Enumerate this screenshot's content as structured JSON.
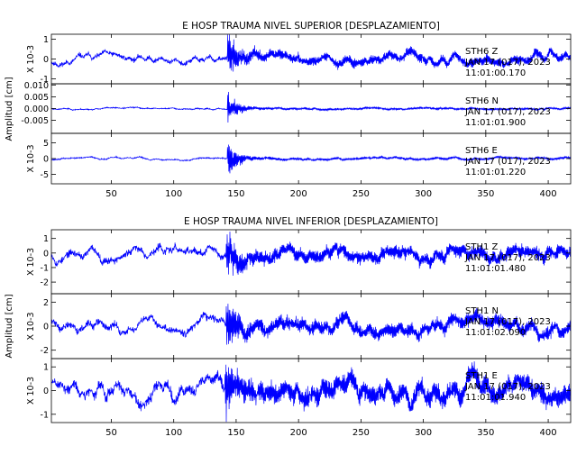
{
  "chart_data": [
    {
      "type": "line",
      "title": "E HOSP TRAUMA NIVEL SUPERIOR [DESPLAZAMIENTO]",
      "ylabel": "Amplitud [cm]",
      "xlim": [
        2,
        418
      ],
      "xticks": [
        50,
        100,
        150,
        200,
        250,
        300,
        350,
        400
      ],
      "line_color": "#0000ff",
      "panels": [
        {
          "station": "STH6",
          "component": "Z",
          "date": "JAN 17 (017), 2023",
          "time": "11:01:00.170",
          "multiplier": "X 10-3",
          "ylim": [
            -1.25,
            1.25
          ],
          "yticks": [
            -1,
            0,
            1
          ],
          "ytick_labels": [
            "-1",
            "0",
            "1"
          ],
          "event_time": 143,
          "event_peak": 1.15,
          "noise": 0.22,
          "seed": 11
        },
        {
          "station": "STH6",
          "component": "N",
          "date": "JAN 17 (017), 2023",
          "time": "11:01:01.900",
          "multiplier": "",
          "ylim": [
            -0.0105,
            0.0105
          ],
          "yticks": [
            -0.005,
            0,
            0.005,
            0.01
          ],
          "ytick_labels": [
            "-0.005",
            "0.000",
            "0.005",
            "0.010"
          ],
          "event_time": 143,
          "event_peak": 0.0062,
          "noise": 0.0004,
          "seed": 23
        },
        {
          "station": "STH6",
          "component": "E",
          "date": "JAN 17 (017), 2023",
          "time": "11:01:01.220",
          "multiplier": "X 10-3",
          "ylim": [
            -8,
            8
          ],
          "yticks": [
            -5,
            0,
            5
          ],
          "ytick_labels": [
            "-5",
            "0",
            "5"
          ],
          "event_time": 143,
          "event_peak": 6.5,
          "noise": 0.35,
          "seed": 37
        }
      ]
    },
    {
      "type": "line",
      "title": "E HOSP TRAUMA NIVEL INFERIOR [DESPLAZAMIENTO]",
      "ylabel": "Amplitud [cm]",
      "xlim": [
        2,
        418
      ],
      "xticks": [
        50,
        100,
        150,
        200,
        250,
        300,
        350,
        400
      ],
      "line_color": "#0000ff",
      "panels": [
        {
          "station": "STH1",
          "component": "Z",
          "date": "JAN 17 (017), 2023",
          "time": "11:01:01.480",
          "multiplier": "X 10-3",
          "ylim": [
            -2.8,
            1.6
          ],
          "yticks": [
            -2,
            -1,
            0,
            1
          ],
          "ytick_labels": [
            "-2",
            "-1",
            "0",
            "1"
          ],
          "event_time": 142,
          "event_peak": 1.5,
          "noise": 0.45,
          "seed": 53
        },
        {
          "station": "STH1",
          "component": "N",
          "date": "JAN 17 (017), 2023",
          "time": "11:01:02.090",
          "multiplier": "X 10-3",
          "ylim": [
            -2.7,
            2.7
          ],
          "yticks": [
            -2,
            0,
            2
          ],
          "ytick_labels": [
            "-2",
            "0",
            "2"
          ],
          "event_time": 142,
          "event_peak": 2.2,
          "noise": 0.55,
          "seed": 71
        },
        {
          "station": "STH1",
          "component": "E",
          "date": "JAN 17 (017), 2023",
          "time": "11:01:01.940",
          "multiplier": "X 10-3",
          "ylim": [
            -1.35,
            1.35
          ],
          "yticks": [
            -1,
            0,
            1
          ],
          "ytick_labels": [
            "-1",
            "0",
            "1"
          ],
          "event_time": 141,
          "event_peak": 1.25,
          "noise": 0.42,
          "seed": 89
        }
      ]
    }
  ]
}
